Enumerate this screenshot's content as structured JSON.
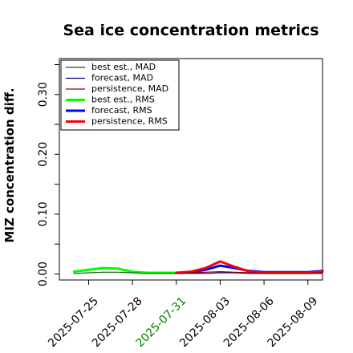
{
  "chart_data": {
    "type": "line",
    "title": "Sea ice concentration metrics",
    "ylabel": "MIZ concentration diff.",
    "xlabel": "",
    "ylim": [
      -0.01,
      0.36
    ],
    "yticks": [
      0.0,
      0.05,
      0.1,
      0.15,
      0.2,
      0.25,
      0.3,
      0.35
    ],
    "ytick_labels": [
      "0.00",
      "",
      "0.10",
      "",
      "0.20",
      "",
      "0.30",
      ""
    ],
    "x_dates": [
      "2025-07-24",
      "2025-07-25",
      "2025-07-26",
      "2025-07-27",
      "2025-07-28",
      "2025-07-29",
      "2025-07-30",
      "2025-07-31",
      "2025-08-01",
      "2025-08-02",
      "2025-08-03",
      "2025-08-04",
      "2025-08-05",
      "2025-08-06",
      "2025-08-07",
      "2025-08-08",
      "2025-08-09",
      "2025-08-10"
    ],
    "xlim": [
      "2025-07-23",
      "2025-08-10"
    ],
    "xticks": [
      "2025-07-25",
      "2025-07-28",
      "2025-07-31",
      "2025-08-03",
      "2025-08-06",
      "2025-08-09"
    ],
    "xtick_colors": [
      "#000000",
      "#000000",
      "#008000",
      "#000000",
      "#000000",
      "#000000"
    ],
    "series": [
      {
        "name": "best est., MAD",
        "color": "#006400",
        "width": 1.2,
        "start": "2025-07-24",
        "values": [
          0.001,
          0.002,
          0.003,
          0.003,
          0.002,
          0.001,
          0.001,
          0.001
        ]
      },
      {
        "name": "forecast,  MAD",
        "color": "#00008b",
        "width": 1.2,
        "start": "2025-07-31",
        "values": [
          0.001,
          0.001,
          0.001,
          0.002,
          0.002,
          0.001,
          0.001,
          0.001,
          0.001,
          0.001,
          0.001
        ]
      },
      {
        "name": "persistence, MAD",
        "color": "#8b0000",
        "width": 1.2,
        "start": "2025-07-31",
        "values": [
          0.001,
          0.002,
          0.003,
          0.004,
          0.003,
          0.002,
          0.001,
          0.001,
          0.001,
          0.001,
          0.002
        ]
      },
      {
        "name": "best est., RMS",
        "color": "#00ff00",
        "width": 3,
        "start": "2025-07-24",
        "values": [
          0.004,
          0.007,
          0.01,
          0.009,
          0.004,
          0.002,
          0.002,
          0.002
        ]
      },
      {
        "name": "forecast,  RMS",
        "color": "#0000ff",
        "width": 3,
        "start": "2025-07-31",
        "values": [
          0.002,
          0.003,
          0.007,
          0.014,
          0.01,
          0.005,
          0.003,
          0.003,
          0.003,
          0.003,
          0.005
        ]
      },
      {
        "name": "persistence, RMS",
        "color": "#ff0000",
        "width": 3,
        "start": "2025-07-31",
        "values": [
          0.002,
          0.004,
          0.01,
          0.021,
          0.012,
          0.004,
          0.002,
          0.002,
          0.002,
          0.002,
          0.004
        ]
      }
    ],
    "legend": "top-left",
    "grid": false
  }
}
